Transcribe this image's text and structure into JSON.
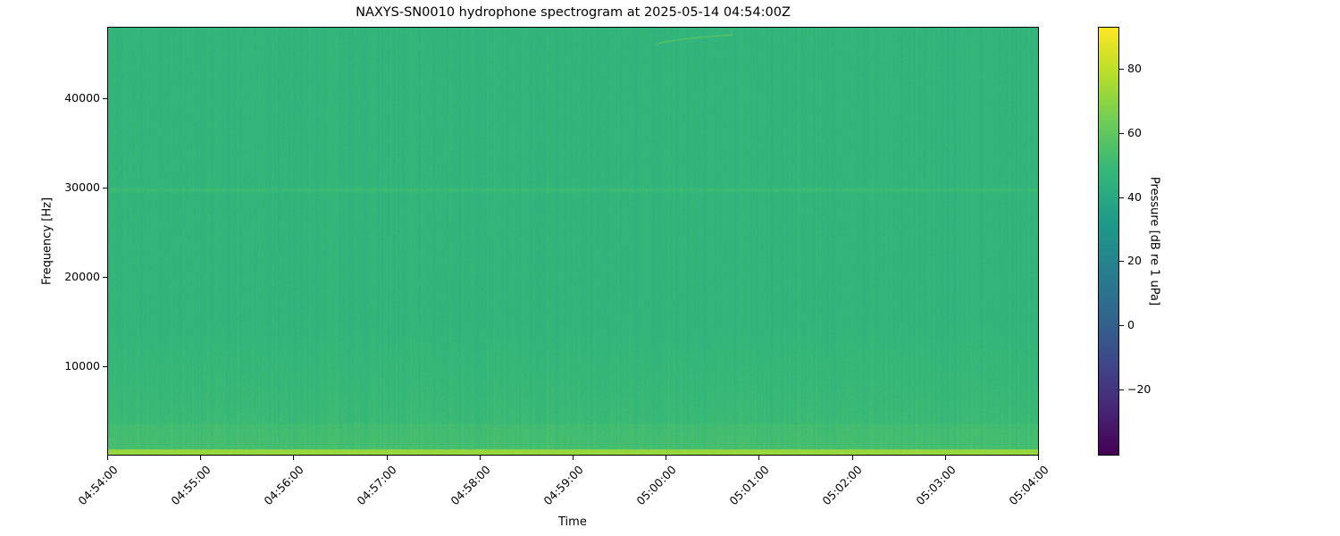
{
  "chart_data": {
    "type": "heatmap",
    "title": "NAXYS-SN0010 hydrophone spectrogram at 2025-05-14 04:54:00Z",
    "xlabel": "Time",
    "ylabel": "Frequency [Hz]",
    "xlim": [
      "04:54:00",
      "05:04:00"
    ],
    "ylim": [
      0,
      48000
    ],
    "xticks": [
      "04:54:00",
      "04:55:00",
      "04:56:00",
      "04:57:00",
      "04:58:00",
      "04:59:00",
      "05:00:00",
      "05:01:00",
      "05:02:00",
      "05:03:00",
      "05:04:00"
    ],
    "yticks": [
      10000,
      20000,
      30000,
      40000
    ],
    "colormap": "viridis",
    "colorbar": {
      "label": "Pressure [dB re 1 uPa]",
      "range": [
        -40.5,
        93
      ],
      "ticks": [
        -20,
        0,
        20,
        40,
        60,
        80
      ]
    },
    "background_level_db": 47,
    "low_frequency_band": {
      "freq_range_hz": [
        0,
        700
      ],
      "level_db": 72
    },
    "tonal_band": {
      "freq_hz": 29800,
      "level_db": 51
    },
    "chirp": {
      "start_time": "04:59:54",
      "end_time": "05:00:43",
      "freq_range_hz": [
        46000,
        47200
      ],
      "level_db": 62
    },
    "grid": false
  }
}
